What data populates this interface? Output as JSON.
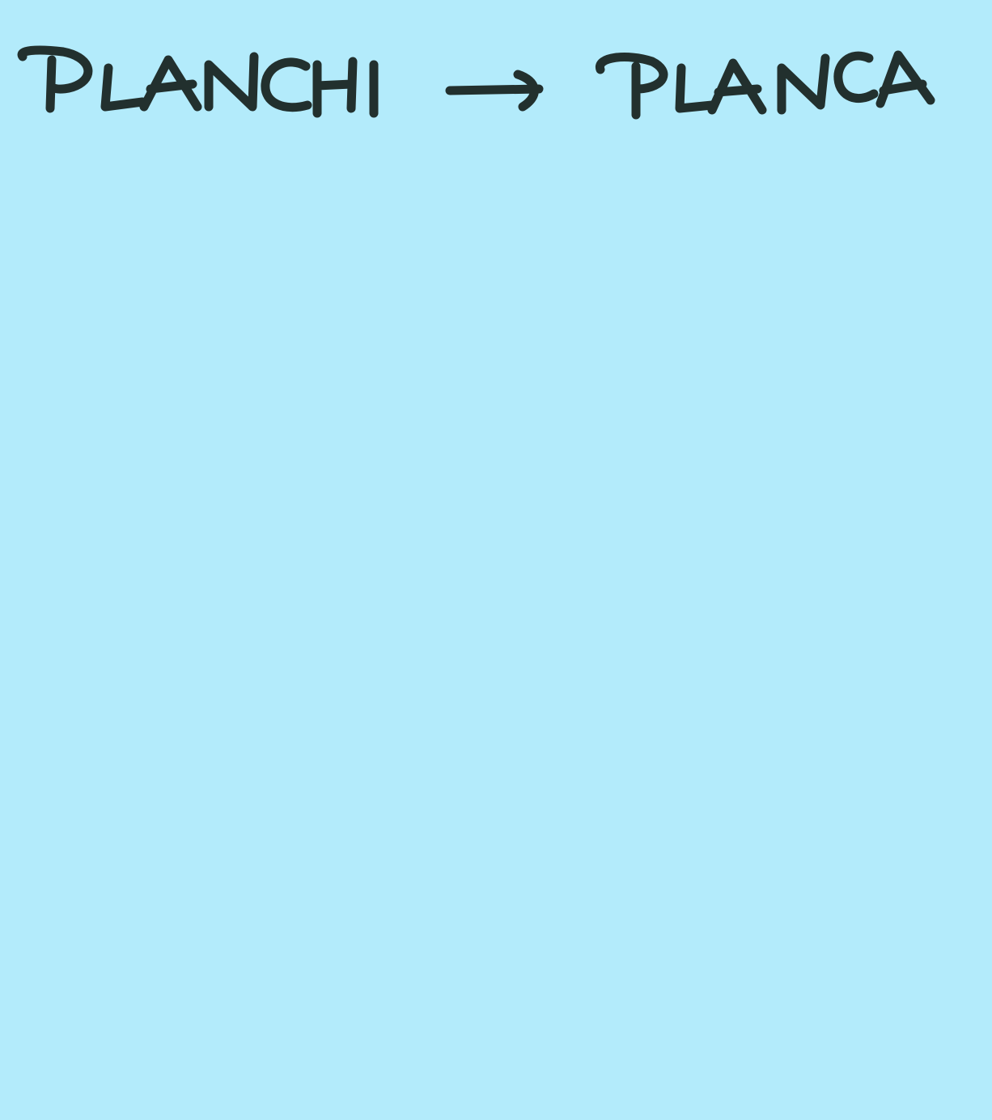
{
  "note": {
    "source_word": "PLANCHI",
    "arrow_icon": "right-arrow-icon",
    "target_word": "PLANCA"
  },
  "colors": {
    "paper": "#B3EBFB",
    "ink": "#22302E"
  }
}
